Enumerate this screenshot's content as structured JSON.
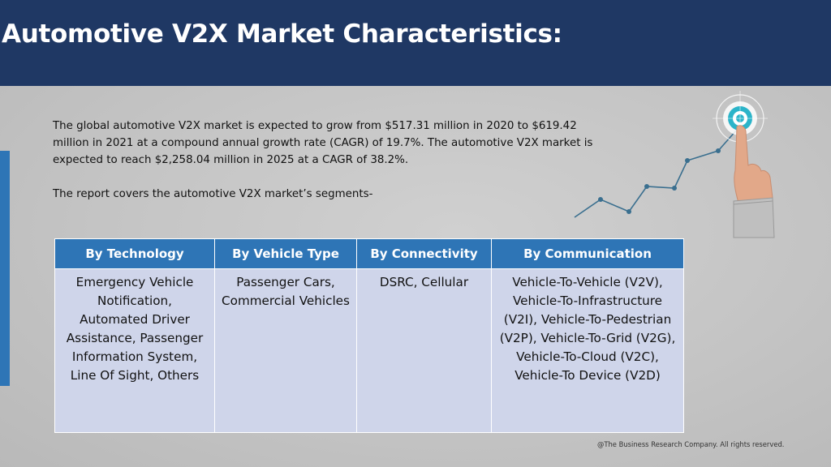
{
  "header": {
    "title": "Automotive V2X Market Characteristics:"
  },
  "body": {
    "intro": "The global automotive V2X market is expected to grow from $517.31 million in 2020 to $619.42 million in 2021 at a compound annual growth rate (CAGR) of 19.7%. The automotive V2X market is expected to reach $2,258.04 million in 2025 at a CAGR of 38.2%.",
    "segments_line": "The report covers the automotive V2X market’s segments-"
  },
  "table": {
    "headers": [
      "By Technology",
      "By Vehicle Type",
      "By Connectivity",
      "By Communication"
    ],
    "cells": [
      "Emergency Vehicle Notification, Automated Driver Assistance, Passenger Information System, Line Of Sight, Others",
      "Passenger Cars, Commercial Vehicles",
      "DSRC, Cellular",
      "Vehicle-To-Vehicle (V2V), Vehicle-To-Infrastructure (V2I), Vehicle-To-Pedestrian (V2P), Vehicle-To-Grid (V2G), Vehicle-To-Cloud (V2C), Vehicle-To Device (V2D)"
    ]
  },
  "footer": {
    "copyright": "@The Business Research Company. All rights reserved."
  },
  "graphic": {
    "icon": "growth-chart-target-hand-icon",
    "colors": {
      "line": "#3a6f8f",
      "target": "#2bb4c9",
      "skin": "#e2a889"
    }
  },
  "colors": {
    "header_bg": "#1f3864",
    "accent_blue": "#2e75b6",
    "table_cell_bg": "#cfd5ea"
  }
}
